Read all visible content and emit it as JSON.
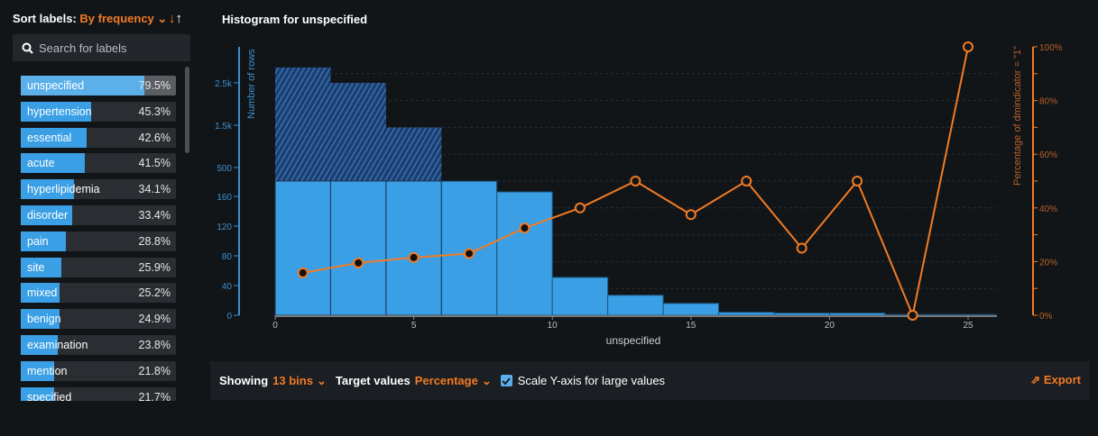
{
  "sidebar": {
    "sort_label": "Sort labels:",
    "sort_value": "By frequency",
    "search_placeholder": "Search for labels",
    "items": [
      {
        "label": "unspecified",
        "pct": "79.5%",
        "value": 79.5
      },
      {
        "label": "hypertension",
        "pct": "45.3%",
        "value": 45.3
      },
      {
        "label": "essential",
        "pct": "42.6%",
        "value": 42.6
      },
      {
        "label": "acute",
        "pct": "41.5%",
        "value": 41.5
      },
      {
        "label": "hyperlipidemia",
        "pct": "34.1%",
        "value": 34.1
      },
      {
        "label": "disorder",
        "pct": "33.4%",
        "value": 33.4
      },
      {
        "label": "pain",
        "pct": "28.8%",
        "value": 28.8
      },
      {
        "label": "site",
        "pct": "25.9%",
        "value": 25.9
      },
      {
        "label": "mixed",
        "pct": "25.2%",
        "value": 25.2
      },
      {
        "label": "benign",
        "pct": "24.9%",
        "value": 24.9
      },
      {
        "label": "examination",
        "pct": "23.8%",
        "value": 23.8
      },
      {
        "label": "mention",
        "pct": "21.8%",
        "value": 21.8
      },
      {
        "label": "specified",
        "pct": "21.7%",
        "value": 21.7
      }
    ]
  },
  "chart_title": "Histogram for unspecified",
  "bottom": {
    "showing_label": "Showing",
    "bins": "13 bins",
    "target_label": "Target values",
    "target_value": "Percentage",
    "scale_label": "Scale Y-axis for large values",
    "scale_checked": true,
    "export": "Export"
  },
  "colors": {
    "bar": "#3a9fe4",
    "line": "#f27b24",
    "axis_left": "#3a8fcf"
  },
  "chart_data": {
    "type": "bar",
    "title": "Histogram for unspecified",
    "xlabel": "unspecified",
    "ylabel": "Number of rows",
    "y2label": "Percentage of dmindicator = \"1\"",
    "xlim": [
      0,
      26
    ],
    "xticks": [
      "0",
      "5",
      "10",
      "15",
      "20",
      "25"
    ],
    "yticks_linear": [
      "0",
      "40",
      "80",
      "120",
      "160"
    ],
    "yticks_log": [
      "500",
      "1.5k",
      "2.5k"
    ],
    "y2ticks": [
      "0%",
      "20%",
      "40%",
      "60%",
      "80%",
      "100%"
    ],
    "bin_width": 2,
    "bin_starts": [
      0,
      2,
      4,
      6,
      8,
      10,
      12,
      14,
      16,
      18,
      20,
      22,
      24
    ],
    "counts": [
      3350,
      2500,
      1070,
      350,
      166,
      51,
      27,
      16,
      4,
      3,
      3,
      1,
      1
    ],
    "series": [
      {
        "name": "Percentage of dmindicator = \"1\"",
        "x": [
          1,
          3,
          5,
          7,
          9,
          11,
          13,
          15,
          17,
          19,
          21,
          23,
          25
        ],
        "values": [
          15.8,
          19.5,
          21.5,
          23,
          32.5,
          40,
          50,
          37.5,
          50,
          25,
          50,
          0,
          100
        ]
      }
    ]
  }
}
